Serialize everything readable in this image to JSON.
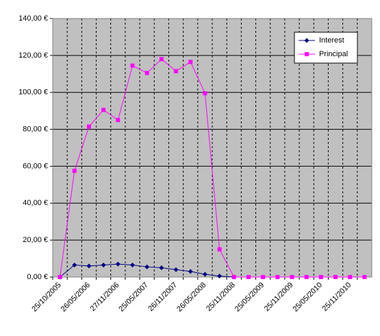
{
  "chart_data": {
    "type": "line",
    "categories": [
      "25/10/2005",
      null,
      "26/05/2006",
      null,
      "27/11/2006",
      null,
      "25/05/2007",
      null,
      "26/11/2007",
      null,
      "26/05/2008",
      null,
      "25/11/2008",
      null,
      "25/05/2009",
      null,
      "25/11/2009",
      null,
      "25/05/2010",
      null,
      "25/11/2010",
      null
    ],
    "series": [
      {
        "name": "Interest",
        "color": "#000080",
        "marker": "diamond",
        "values": [
          0,
          6.5,
          6,
          6.5,
          7,
          6.5,
          5.5,
          5,
          4,
          3,
          1.5,
          0.5,
          0,
          null,
          null,
          null,
          null,
          null,
          null,
          null,
          null,
          null
        ]
      },
      {
        "name": "Principal",
        "color": "#ff00ff",
        "marker": "square",
        "values": [
          0,
          57.5,
          81.5,
          90.5,
          85,
          114.5,
          110.5,
          118,
          111.5,
          116.5,
          99.5,
          15,
          0,
          0,
          0,
          0,
          0,
          0,
          0,
          0,
          0,
          0
        ]
      }
    ],
    "ylim": [
      0,
      140
    ],
    "yticks": [
      {
        "value": 0,
        "label": "0,00 €"
      },
      {
        "value": 20,
        "label": "20,00 €"
      },
      {
        "value": 40,
        "label": "40,00 €"
      },
      {
        "value": 60,
        "label": "60,00 €"
      },
      {
        "value": 80,
        "label": "80,00 €"
      },
      {
        "value": 100,
        "label": "100,00 €"
      },
      {
        "value": 120,
        "label": "120,00 €"
      },
      {
        "value": 140,
        "label": "140,00 €"
      }
    ],
    "grid": true,
    "background": "#c0c0c0",
    "legend": "top-right"
  }
}
